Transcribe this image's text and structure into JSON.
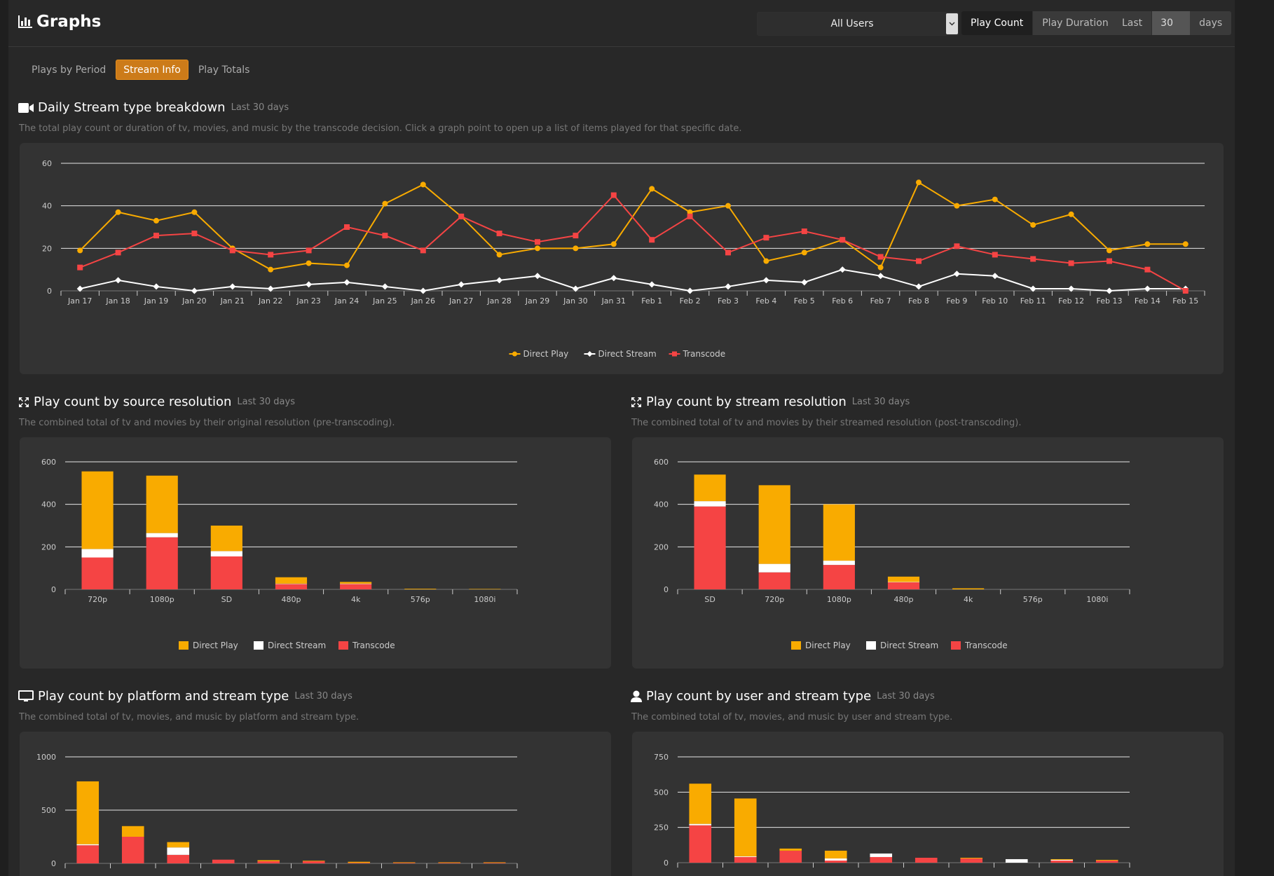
{
  "header": {
    "title": "Graphs",
    "user_select": "All Users",
    "play_count": "Play Count",
    "play_duration": "Play Duration",
    "last": "Last",
    "days_value": "30",
    "days": "days"
  },
  "tabs": [
    {
      "label": "Plays by Period",
      "active": false
    },
    {
      "label": "Stream Info",
      "active": true
    },
    {
      "label": "Play Totals",
      "active": false
    }
  ],
  "colors": {
    "direct_play": "#f9ab00",
    "direct_stream": "#ffffff",
    "transcode": "#f54444",
    "accent": "#cc7b19"
  },
  "legend": [
    "Direct Play",
    "Direct Stream",
    "Transcode"
  ],
  "sections": {
    "daily": {
      "title": "Daily Stream type breakdown",
      "subtitle": "Last 30 days",
      "desc": "The total play count or duration of tv, movies, and music by the transcode decision. Click a graph point to open up a list of items played for that specific date."
    },
    "source_res": {
      "title": "Play count by source resolution",
      "subtitle": "Last 30 days",
      "desc": "The combined total of tv and movies by their original resolution (pre-transcoding)."
    },
    "stream_res": {
      "title": "Play count by stream resolution",
      "subtitle": "Last 30 days",
      "desc": "The combined total of tv and movies by their streamed resolution (post-transcoding)."
    },
    "platform": {
      "title": "Play count by platform and stream type",
      "subtitle": "Last 30 days",
      "desc": "The combined total of tv, movies, and music by platform and stream type."
    },
    "user": {
      "title": "Play count by user and stream type",
      "subtitle": "Last 30 days",
      "desc": "The combined total of tv, movies, and music by user and stream type."
    }
  },
  "chart_data": [
    {
      "id": "daily",
      "type": "line",
      "x": [
        "Jan 17",
        "Jan 18",
        "Jan 19",
        "Jan 20",
        "Jan 21",
        "Jan 22",
        "Jan 23",
        "Jan 24",
        "Jan 25",
        "Jan 26",
        "Jan 27",
        "Jan 28",
        "Jan 29",
        "Jan 30",
        "Jan 31",
        "Feb 1",
        "Feb 2",
        "Feb 3",
        "Feb 4",
        "Feb 5",
        "Feb 6",
        "Feb 7",
        "Feb 8",
        "Feb 9",
        "Feb 10",
        "Feb 11",
        "Feb 12",
        "Feb 13",
        "Feb 14",
        "Feb 15"
      ],
      "ylim": [
        0,
        60
      ],
      "yticks": [
        0,
        20,
        40,
        60
      ],
      "grid": true,
      "legend": "bottom",
      "series": [
        {
          "name": "Direct Play",
          "values": [
            19,
            37,
            33,
            37,
            20,
            10,
            13,
            12,
            41,
            50,
            35,
            17,
            20,
            20,
            22,
            48,
            37,
            40,
            14,
            18,
            24,
            11,
            51,
            40,
            43,
            31,
            36,
            19,
            22,
            22
          ]
        },
        {
          "name": "Direct Stream",
          "values": [
            1,
            5,
            2,
            0,
            2,
            1,
            3,
            4,
            2,
            0,
            3,
            5,
            7,
            1,
            6,
            3,
            0,
            2,
            5,
            4,
            10,
            7,
            2,
            8,
            7,
            1,
            1,
            0,
            1,
            1
          ]
        },
        {
          "name": "Transcode",
          "values": [
            11,
            18,
            26,
            27,
            19,
            17,
            19,
            30,
            26,
            19,
            35,
            27,
            23,
            26,
            45,
            24,
            35,
            18,
            25,
            28,
            24,
            16,
            14,
            21,
            17,
            15,
            13,
            14,
            10,
            0
          ]
        }
      ]
    },
    {
      "id": "source_res",
      "type": "bar",
      "stacked": true,
      "categories": [
        "720p",
        "1080p",
        "SD",
        "480p",
        "4k",
        "576p",
        "1080i"
      ],
      "ylim": [
        0,
        600
      ],
      "yticks": [
        0,
        200,
        400,
        600
      ],
      "legend": "bottom",
      "series": [
        {
          "name": "Direct Play",
          "values": [
            365,
            270,
            120,
            30,
            8,
            3,
            2
          ]
        },
        {
          "name": "Direct Stream",
          "values": [
            40,
            20,
            25,
            2,
            2,
            0,
            0
          ]
        },
        {
          "name": "Transcode",
          "values": [
            150,
            245,
            155,
            25,
            25,
            0,
            0
          ]
        }
      ]
    },
    {
      "id": "stream_res",
      "type": "bar",
      "stacked": true,
      "categories": [
        "SD",
        "720p",
        "1080p",
        "480p",
        "4k",
        "576p",
        "1080i"
      ],
      "ylim": [
        0,
        600
      ],
      "yticks": [
        0,
        200,
        400,
        600
      ],
      "legend": "bottom",
      "series": [
        {
          "name": "Direct Play",
          "values": [
            125,
            370,
            265,
            25,
            5,
            0,
            0
          ]
        },
        {
          "name": "Direct Stream",
          "values": [
            25,
            40,
            20,
            2,
            0,
            0,
            0
          ]
        },
        {
          "name": "Transcode",
          "values": [
            390,
            80,
            115,
            33,
            0,
            0,
            0
          ]
        }
      ]
    },
    {
      "id": "platform",
      "type": "bar",
      "stacked": true,
      "categories": [
        "",
        "",
        "",
        "",
        "",
        "",
        "",
        "",
        "",
        ""
      ],
      "ylim": [
        0,
        1000
      ],
      "yticks": [
        0,
        500,
        1000
      ],
      "series": [
        {
          "name": "Direct Play",
          "values": [
            590,
            100,
            50,
            0,
            10,
            5,
            10,
            5,
            5,
            5
          ]
        },
        {
          "name": "Direct Stream",
          "values": [
            10,
            0,
            70,
            0,
            0,
            0,
            0,
            0,
            0,
            0
          ]
        },
        {
          "name": "Transcode",
          "values": [
            170,
            250,
            80,
            35,
            20,
            20,
            5,
            5,
            5,
            5
          ]
        }
      ]
    },
    {
      "id": "user",
      "type": "bar",
      "stacked": true,
      "categories": [
        "",
        "",
        "",
        "",
        "",
        "",
        "",
        "",
        "",
        ""
      ],
      "ylim": [
        0,
        750
      ],
      "yticks": [
        0,
        250,
        500,
        750
      ],
      "series": [
        {
          "name": "Direct Play",
          "values": [
            285,
            410,
            15,
            55,
            0,
            0,
            5,
            0,
            5,
            5
          ]
        },
        {
          "name": "Direct Stream",
          "values": [
            10,
            5,
            0,
            15,
            25,
            0,
            0,
            25,
            5,
            0
          ]
        },
        {
          "name": "Transcode",
          "values": [
            265,
            40,
            85,
            15,
            40,
            35,
            30,
            0,
            15,
            15
          ]
        }
      ]
    }
  ]
}
